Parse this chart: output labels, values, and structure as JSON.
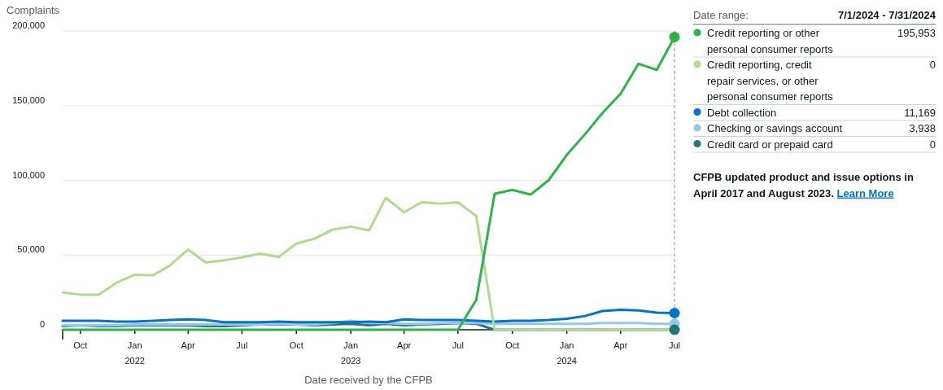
{
  "chart_data": {
    "type": "line",
    "ylabel": "Complaints",
    "xlabel": "Date received by the CFPB",
    "legend": "right",
    "legend_title": "Date range:",
    "annotations": [
      "7/1/2024 - 7/31/2024",
      "CFPB updated product and issue options in April 2017 and August 2023.",
      "Learn More",
      "195,953",
      "0",
      "11,169",
      "3,938",
      "0"
    ],
    "x": [
      "2021-09",
      "2021-10",
      "2021-11",
      "2021-12",
      "2022-01",
      "2022-02",
      "2022-03",
      "2022-04",
      "2022-05",
      "2022-06",
      "2022-07",
      "2022-08",
      "2022-09",
      "2022-10",
      "2022-11",
      "2022-12",
      "2023-01",
      "2023-02",
      "2023-03",
      "2023-04",
      "2023-05",
      "2023-06",
      "2023-07",
      "2023-08",
      "2023-09",
      "2023-10",
      "2023-11",
      "2023-12",
      "2024-01",
      "2024-02",
      "2024-03",
      "2024-04",
      "2024-05",
      "2024-06",
      "2024-07"
    ],
    "xlim": [
      "2021-09",
      "2024-07"
    ],
    "xticks": [
      {
        "value": "2021-09",
        "label": null
      },
      {
        "value": "2021-10",
        "label": "Oct"
      },
      {
        "value": "2022-01",
        "label": "Jan\n2022"
      },
      {
        "value": "2022-04",
        "label": "Apr"
      },
      {
        "value": "2022-07",
        "label": "Jul"
      },
      {
        "value": "2022-10",
        "label": "Oct"
      },
      {
        "value": "2023-01",
        "label": "Jan\n2023"
      },
      {
        "value": "2023-04",
        "label": "Apr"
      },
      {
        "value": "2023-07",
        "label": "Jul"
      },
      {
        "value": "2023-10",
        "label": "Oct"
      },
      {
        "value": "2024-01",
        "label": "Jan\n2024"
      },
      {
        "value": "2024-04",
        "label": "Apr"
      },
      {
        "value": "2024-07",
        "label": "Jul"
      }
    ],
    "ylim": [
      0,
      200000
    ],
    "yticks": [
      0,
      {
        "value": 50000,
        "label": "50,000"
      },
      {
        "value": 100000,
        "label": "100,000"
      },
      {
        "value": 150000,
        "label": "150,000"
      },
      {
        "value": 200000,
        "label": "200,000"
      }
    ],
    "grid": "y",
    "ref_lines": [
      {
        "axis": "x",
        "value": "2024-07",
        "label": null,
        "color": "#c8c8c8",
        "line_style": "dashed"
      }
    ],
    "series": [
      {
        "name": "Credit reporting or other personal consumer reports",
        "color": "#2cb34a",
        "values": [
          0,
          0,
          0,
          0,
          0,
          0,
          0,
          0,
          0,
          0,
          0,
          0,
          0,
          0,
          0,
          0,
          0,
          0,
          0,
          0,
          0,
          0,
          0,
          20000,
          91000,
          93600,
          90500,
          100000,
          117000,
          131000,
          145000,
          158000,
          178000,
          174000,
          195953
        ]
      },
      {
        "name": "Credit reporting, credit repair services, or other personal consumer reports",
        "color": "#addc91",
        "values": [
          25000,
          23500,
          23500,
          31500,
          36800,
          36500,
          43000,
          53700,
          45000,
          46500,
          48500,
          51000,
          48800,
          57600,
          61000,
          67000,
          68900,
          66500,
          88300,
          78600,
          85400,
          84400,
          85300,
          76000,
          0,
          0,
          0,
          0,
          0,
          0,
          0,
          0,
          0,
          0,
          0
        ]
      },
      {
        "name": "Debt collection",
        "color": "#0072ce",
        "values": [
          6000,
          6000,
          6000,
          5500,
          5500,
          6000,
          6500,
          7000,
          6500,
          5000,
          5000,
          5000,
          5500,
          5000,
          5000,
          5000,
          5000,
          5500,
          5000,
          7000,
          6500,
          6500,
          6500,
          6000,
          5500,
          6000,
          6000,
          6500,
          7300,
          9200,
          12500,
          13300,
          13000,
          11500,
          11169
        ]
      },
      {
        "name": "Checking or savings account",
        "color": "#96c4ed",
        "values": [
          3000,
          3000,
          3000,
          3000,
          3500,
          3500,
          3500,
          3500,
          3500,
          3500,
          3500,
          3500,
          4000,
          3500,
          3500,
          4500,
          6000,
          4500,
          4500,
          4000,
          4000,
          4500,
          4500,
          4500,
          4000,
          4000,
          4000,
          4000,
          4000,
          4000,
          4500,
          4500,
          4500,
          4000,
          3938
        ]
      },
      {
        "name": "Credit card or prepaid card",
        "color": "#257675",
        "values": [
          2500,
          3000,
          2500,
          2500,
          3000,
          3000,
          3000,
          3000,
          2500,
          2500,
          3000,
          3500,
          3500,
          3500,
          3000,
          3500,
          4000,
          3000,
          4000,
          3000,
          3500,
          4000,
          4500,
          4000,
          0,
          0,
          0,
          0,
          0,
          0,
          0,
          0,
          0,
          0,
          0
        ]
      }
    ]
  }
}
